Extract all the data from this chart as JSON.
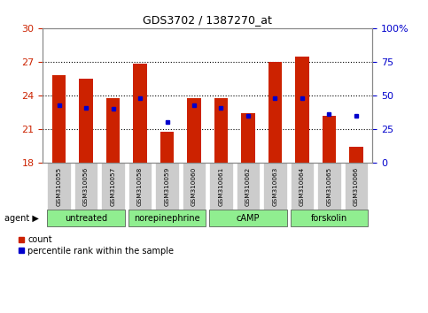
{
  "title": "GDS3702 / 1387270_at",
  "samples": [
    "GSM310055",
    "GSM310056",
    "GSM310057",
    "GSM310058",
    "GSM310059",
    "GSM310060",
    "GSM310061",
    "GSM310062",
    "GSM310063",
    "GSM310064",
    "GSM310065",
    "GSM310066"
  ],
  "bar_heights": [
    25.8,
    25.5,
    23.8,
    26.8,
    20.8,
    23.8,
    23.8,
    22.4,
    27.0,
    27.5,
    22.2,
    19.4
  ],
  "blue_dot_pct": [
    43,
    41,
    40,
    48,
    30,
    43,
    41,
    35,
    48,
    48,
    36,
    35
  ],
  "bar_bottom": 18,
  "ylim_left": [
    18,
    30
  ],
  "ylim_right": [
    0,
    100
  ],
  "yticks_left": [
    18,
    21,
    24,
    27,
    30
  ],
  "yticks_right": [
    0,
    25,
    50,
    75,
    100
  ],
  "ytick_labels_right": [
    "0",
    "25",
    "50",
    "75",
    "100%"
  ],
  "dotted_lines": [
    21,
    24,
    27
  ],
  "bar_color": "#cc2200",
  "dot_color": "#0000cc",
  "agent_groups": [
    {
      "label": "untreated",
      "samples": [
        0,
        1,
        2
      ]
    },
    {
      "label": "norepinephrine",
      "samples": [
        3,
        4,
        5
      ]
    },
    {
      "label": "cAMP",
      "samples": [
        6,
        7,
        8
      ]
    },
    {
      "label": "forskolin",
      "samples": [
        9,
        10,
        11
      ]
    }
  ],
  "agent_bg": "#90ee90",
  "legend_count": "count",
  "legend_pct": "percentile rank within the sample",
  "bar_width": 0.5
}
